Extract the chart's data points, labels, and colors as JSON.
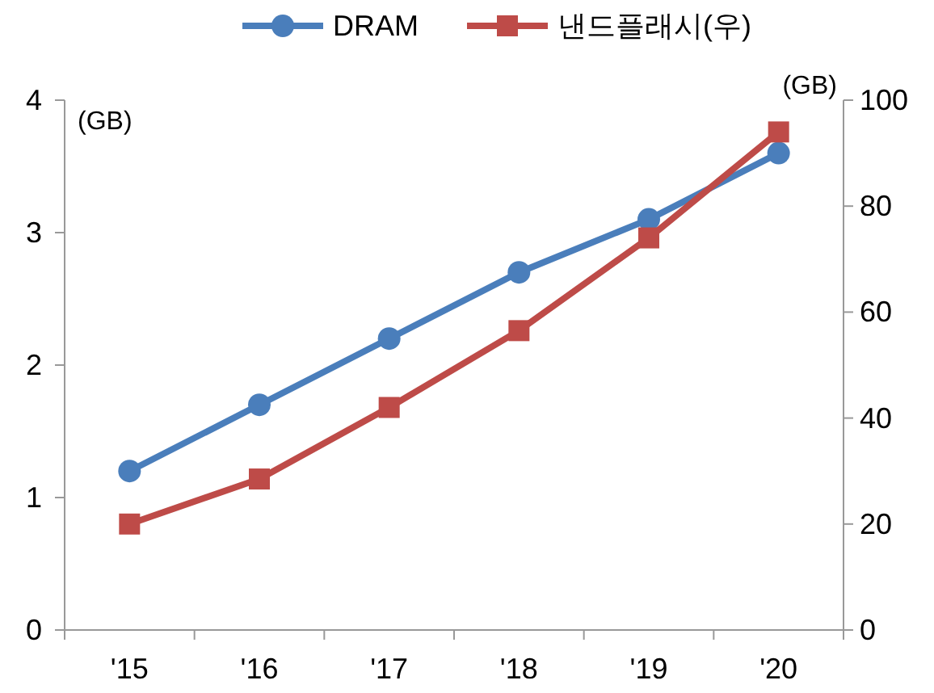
{
  "chart_data": {
    "type": "line",
    "categories": [
      "'15",
      "'16",
      "'17",
      "'18",
      "'19",
      "'20"
    ],
    "series": [
      {
        "name": "DRAM",
        "color": "#4a7ebb",
        "values": [
          1.2,
          1.7,
          2.2,
          2.7,
          3.1,
          3.6
        ],
        "marker": "circle"
      },
      {
        "name": "낸드플래시(우)",
        "color": "#be4b48",
        "values": [
          20,
          28.5,
          42,
          56.5,
          74,
          94
        ],
        "marker": "square",
        "axis": "y2"
      }
    ],
    "ylabel": "(GB)",
    "y2label": "(GB)",
    "ylim": [
      0,
      4
    ],
    "yticks": [
      0,
      1,
      2,
      3,
      4
    ],
    "y2lim": [
      0,
      100
    ],
    "y2ticks": [
      0,
      20,
      40,
      60,
      80,
      100
    ],
    "legend": "top",
    "grid": false
  }
}
